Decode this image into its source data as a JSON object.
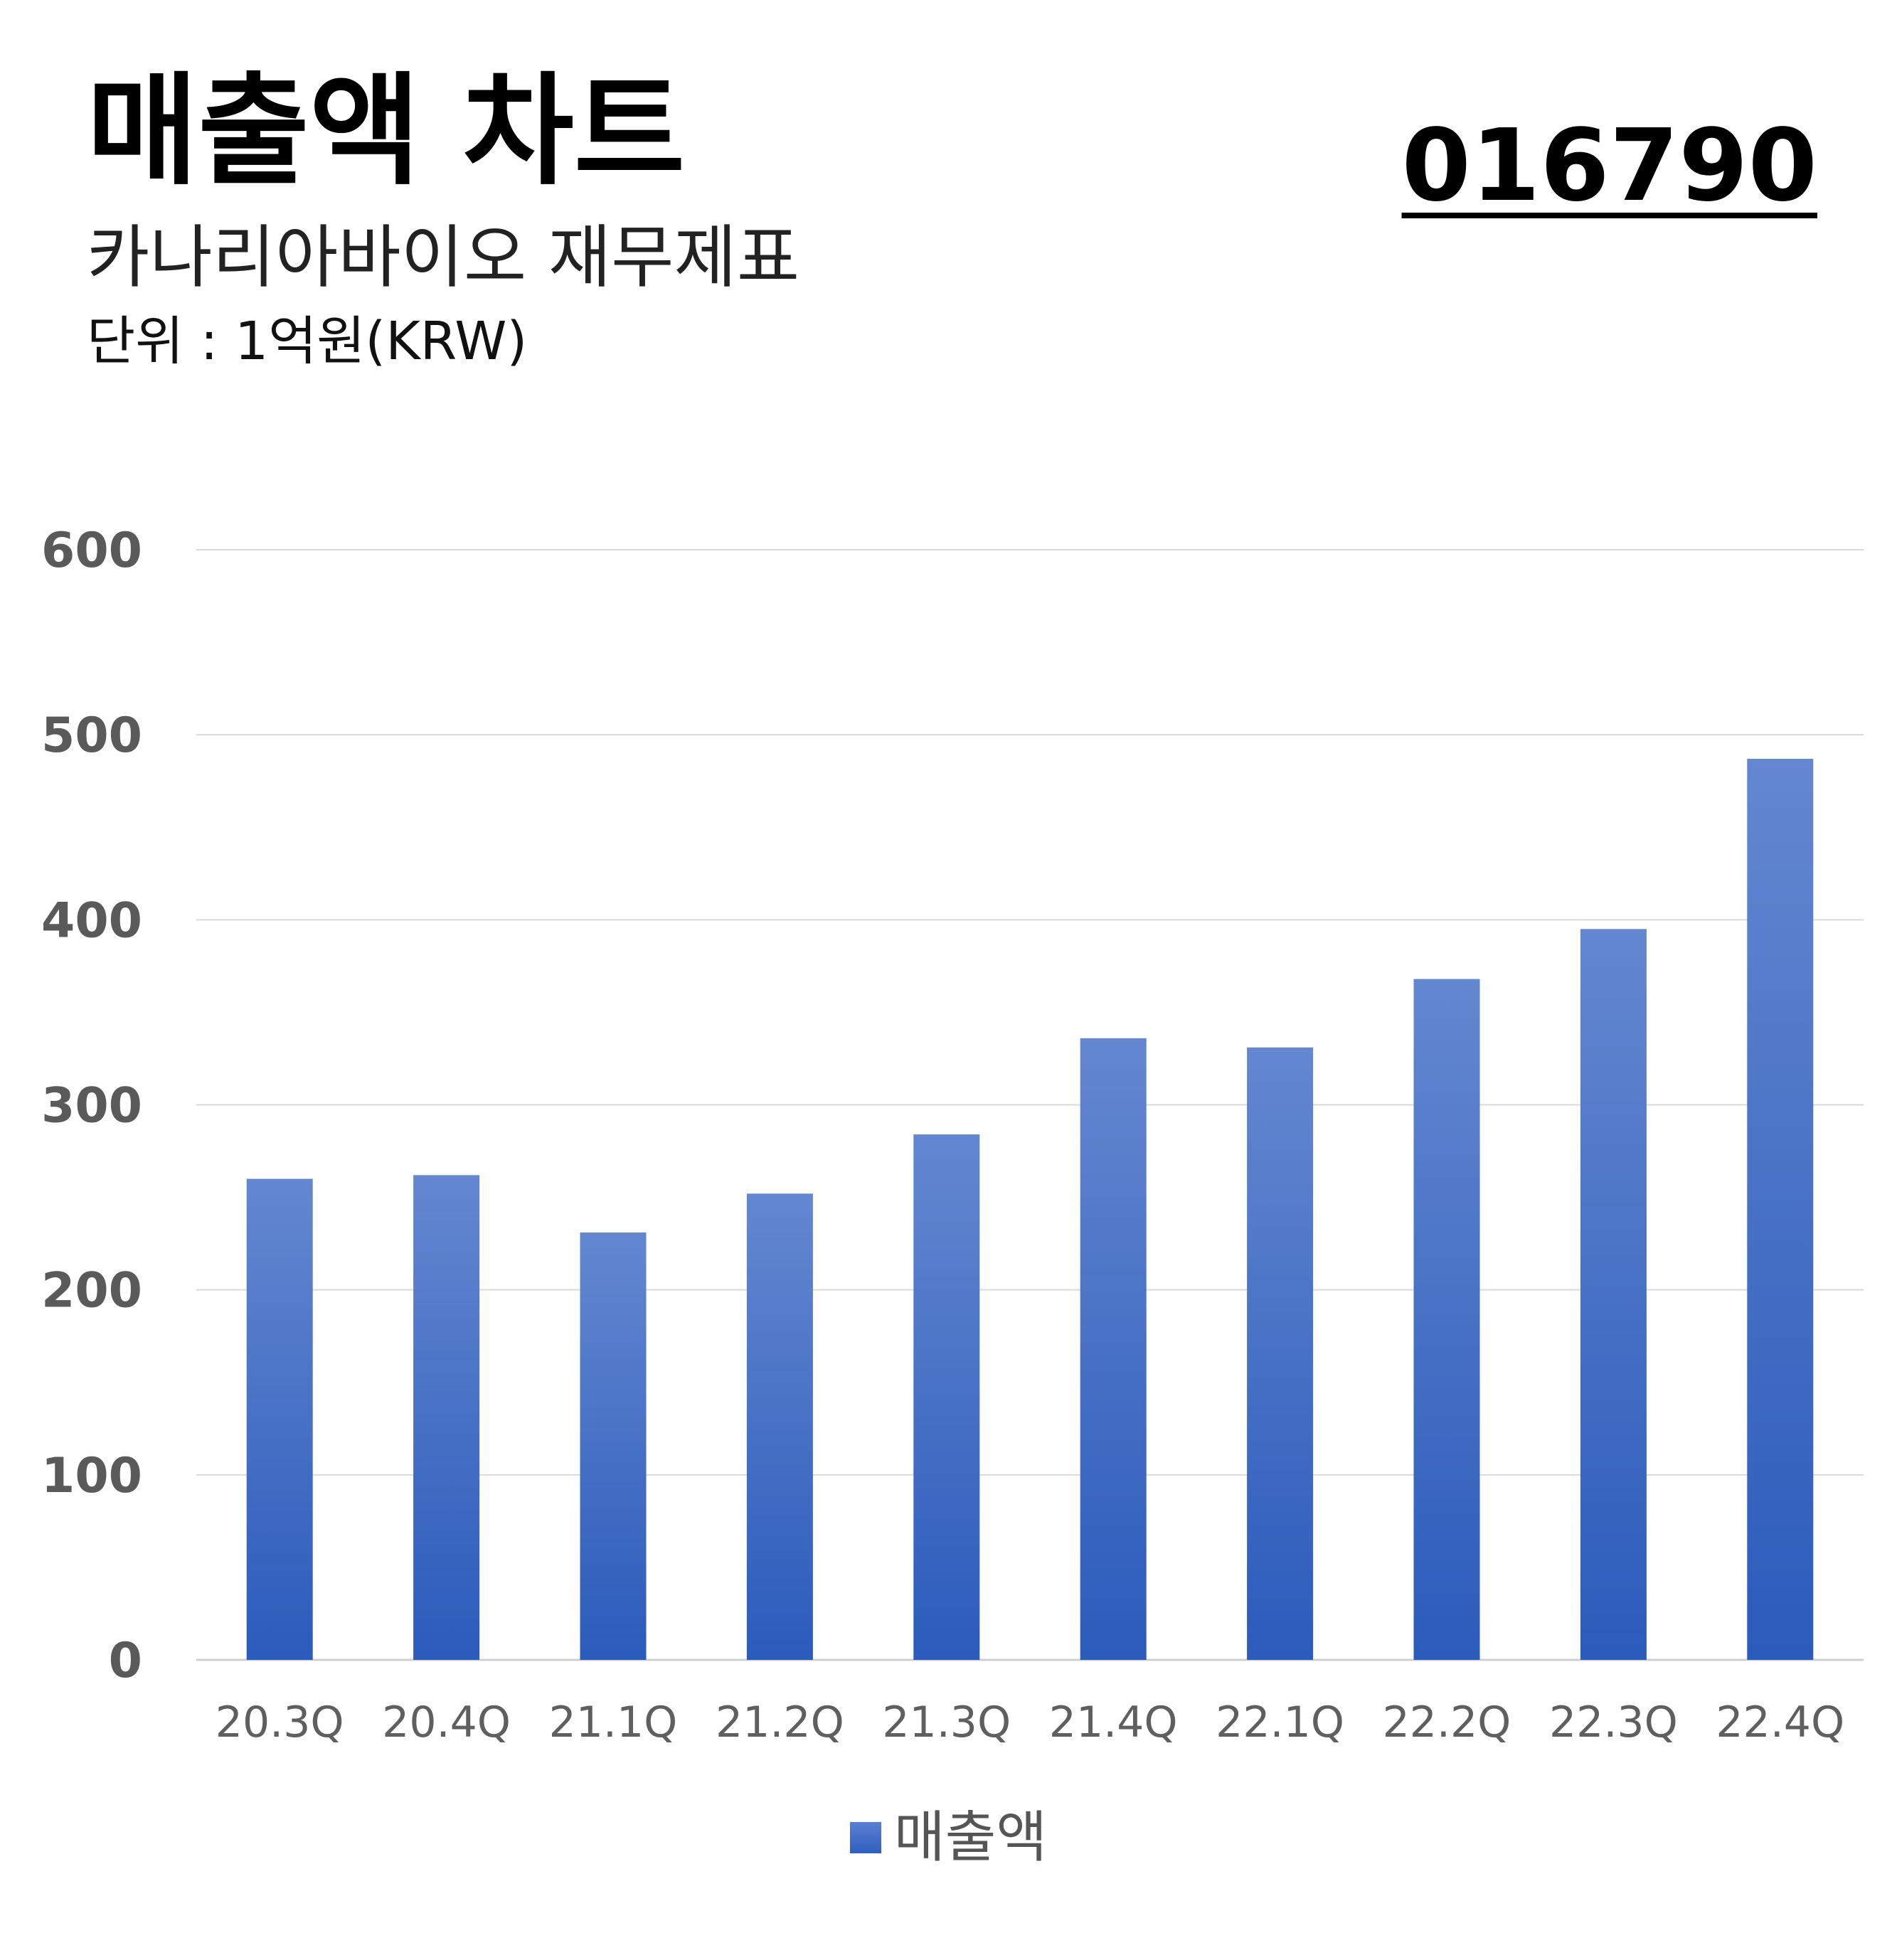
{
  "header": {
    "title": "매출액 차트",
    "code": "016790",
    "subtitle": "카나리아바이오 재무제표",
    "unit": "단위 : 1억원(KRW)"
  },
  "colors": {
    "bar_top": "#6487d0",
    "bar_bottom": "#2b5bbb",
    "grid": "#d9d9d9",
    "axis_text": "#5a5a5a"
  },
  "chart_data": {
    "type": "bar",
    "categories": [
      "20.3Q",
      "20.4Q",
      "21.1Q",
      "21.2Q",
      "21.3Q",
      "21.4Q",
      "22.1Q",
      "22.2Q",
      "22.3Q",
      "22.4Q"
    ],
    "series": [
      {
        "name": "매출액",
        "values": [
          260,
          262,
          231,
          252,
          284,
          336,
          331,
          368,
          395,
          487
        ]
      }
    ],
    "ylim": [
      0,
      600
    ],
    "yticks": [
      0,
      100,
      200,
      300,
      400,
      500,
      600
    ],
    "grid": true,
    "legend": "bottom-center"
  }
}
